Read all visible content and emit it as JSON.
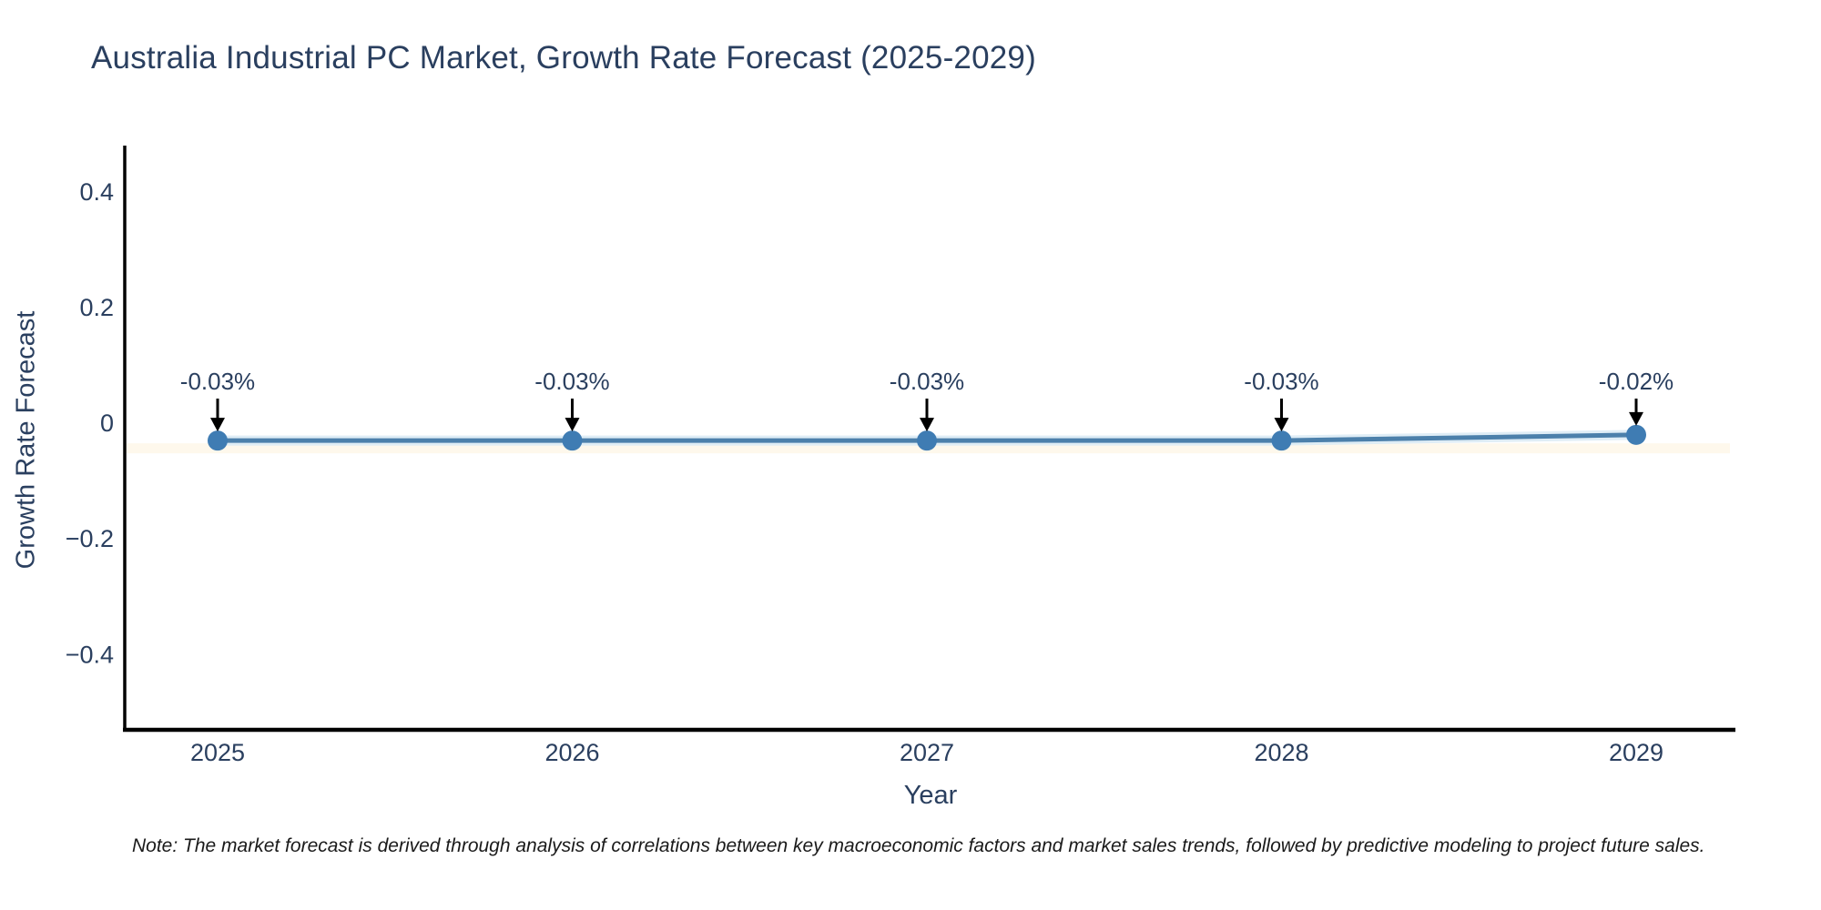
{
  "header": {
    "title": "Australia Industrial PC Market, Growth Rate Forecast (2025-2029)"
  },
  "footnote": {
    "text": "Note: The market forecast is derived through analysis of correlations between key macroeconomic factors and market sales trends, followed by predictive modeling to project future sales."
  },
  "chart_data": {
    "type": "line",
    "title": "Australia Industrial PC Market, Growth Rate Forecast (2025-2029)",
    "xlabel": "Year",
    "ylabel": "Growth Rate Forecast",
    "x": [
      2025,
      2026,
      2027,
      2028,
      2029
    ],
    "series": [
      {
        "name": "Growth Rate Forecast",
        "values": [
          -0.03,
          -0.03,
          -0.03,
          -0.03,
          -0.02
        ],
        "point_labels": [
          "-0.03%",
          "-0.03%",
          "-0.03%",
          "-0.03%",
          "-0.02%"
        ]
      }
    ],
    "annotations": [
      {
        "x": 2025,
        "y": -0.03,
        "text": "-0.03%",
        "arrow": true
      },
      {
        "x": 2026,
        "y": -0.03,
        "text": "-0.03%",
        "arrow": true
      },
      {
        "x": 2027,
        "y": -0.03,
        "text": "-0.03%",
        "arrow": true
      },
      {
        "x": 2028,
        "y": -0.03,
        "text": "-0.03%",
        "arrow": true
      },
      {
        "x": 2029,
        "y": -0.02,
        "text": "-0.02%",
        "arrow": true
      }
    ],
    "xticks": [
      "2025",
      "2026",
      "2027",
      "2028",
      "2029"
    ],
    "yticks": [
      {
        "value": 0.4,
        "label": "0.4"
      },
      {
        "value": 0.2,
        "label": "0.2"
      },
      {
        "value": 0,
        "label": "0"
      },
      {
        "value": -0.2,
        "label": "−0.2"
      },
      {
        "value": -0.4,
        "label": "−0.4"
      }
    ],
    "ylim": [
      -0.53,
      0.48
    ],
    "grid": false,
    "legend_position": "none",
    "colors": {
      "line": "#4c80ab",
      "line_halo": "#dcebf5",
      "under_glow": "#fdf5e4",
      "marker": "#3f7cb3",
      "axis": "#000000",
      "tick_text": "#2a3f5f",
      "annotation_text": "#2a3f5f",
      "arrow": "#000000",
      "background": "#ffffff"
    }
  }
}
